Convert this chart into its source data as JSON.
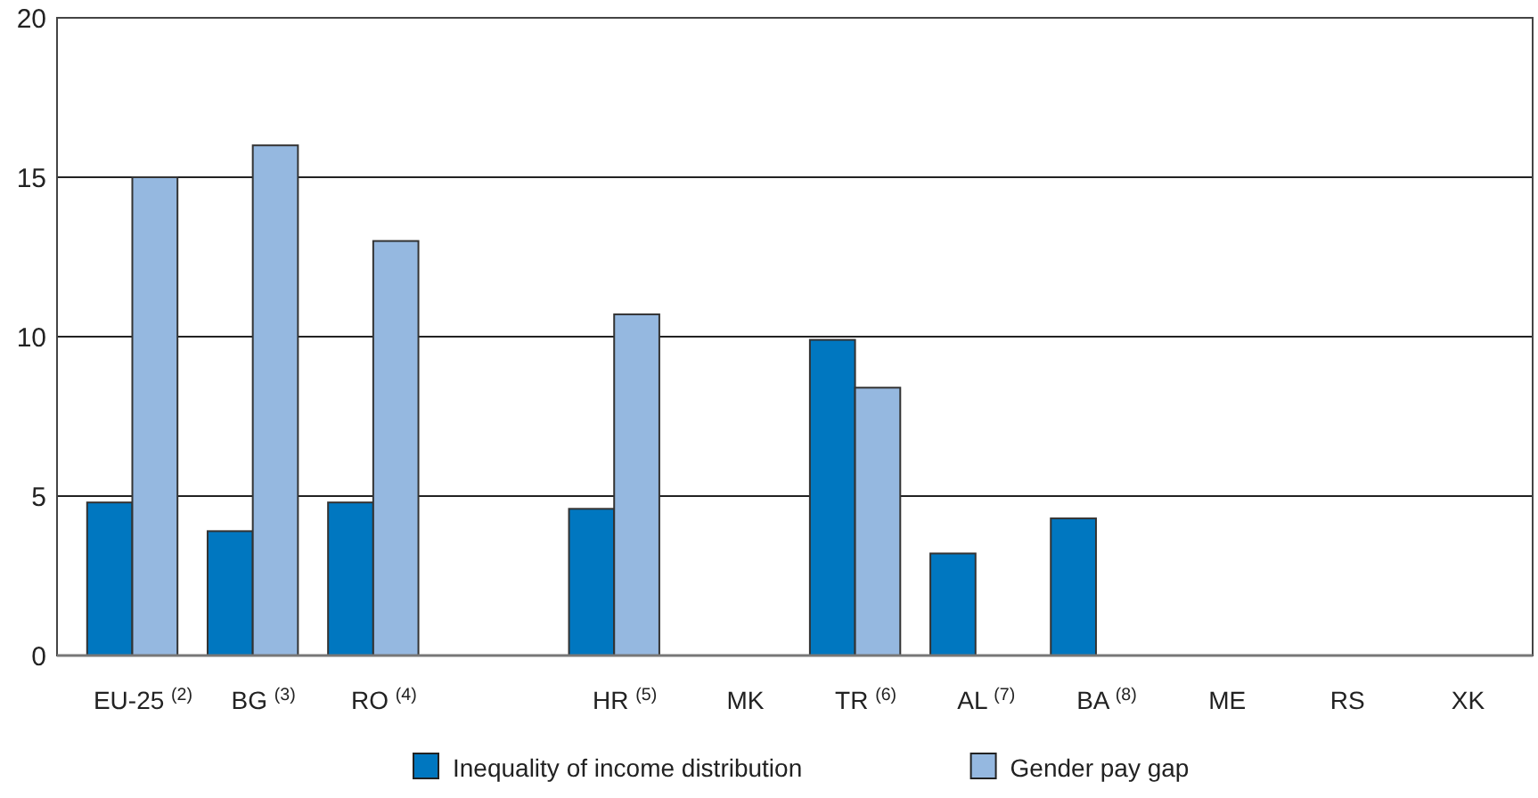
{
  "chart_data": {
    "type": "bar",
    "categories": [
      "EU-25 $^{(2)}$",
      "BG $^{(3)}$",
      "RO $^{(4)}$",
      null,
      "HR $^{(5)}$",
      "MK",
      "TR $^{(6)}$",
      "AL $^{(7)}$",
      "BA $^{(8)}$",
      "ME",
      "RS",
      "XK"
    ],
    "series": [
      {
        "name": "Inequality of income distribution",
        "color": "#0077c0",
        "values": [
          4.8,
          3.9,
          4.8,
          null,
          4.6,
          null,
          9.9,
          3.2,
          4.3,
          null,
          null,
          null
        ]
      },
      {
        "name": "Gender pay gap",
        "color": "#95b8e0",
        "values": [
          15,
          16,
          13,
          null,
          10.7,
          null,
          8.4,
          null,
          null,
          null,
          null,
          null
        ]
      }
    ],
    "ylim": [
      0,
      20
    ],
    "yticks": [
      0,
      5,
      10,
      15,
      20
    ],
    "grid": "y",
    "legend": "bottom"
  }
}
